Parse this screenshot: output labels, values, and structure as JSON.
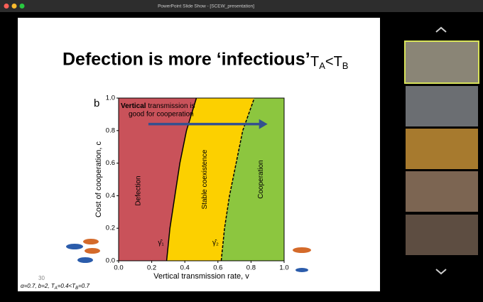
{
  "window": {
    "title": "PowerPoint Slide Show - [SCEW_presentation]"
  },
  "slide": {
    "title": "Defection is more ‘infectious’",
    "title_math": [
      "T",
      "A",
      "<T",
      "B"
    ],
    "page_number": "30",
    "footnote": [
      "α=0.7, b=2, T",
      "A",
      "=0.4<T",
      "B",
      "=0.7"
    ]
  },
  "chart_data": {
    "type": "line",
    "panel_label": "b",
    "xlabel": "Vertical transmission rate, v",
    "ylabel": "Cost of cooperation, c",
    "xlim": [
      0,
      1
    ],
    "ylim": [
      0,
      1
    ],
    "xticks": [
      {
        "value": 0,
        "label": "0.0"
      },
      0.2,
      0.4,
      0.6,
      0.8,
      {
        "value": 1,
        "label": "1.0"
      }
    ],
    "yticks": [
      {
        "value": 0,
        "label": "0.0"
      },
      0.2,
      0.4,
      0.6,
      0.8,
      {
        "value": 1,
        "label": "1.0"
      }
    ],
    "annotation": [
      "Vertical",
      " transmission is",
      "good for cooperation"
    ],
    "regions": [
      {
        "name": "Defection",
        "color": "#c9525a"
      },
      {
        "name": "Stable coexistence",
        "color": "#fcd000"
      },
      {
        "name": "Cooperation",
        "color": "#8cc63f"
      }
    ],
    "series": [
      {
        "name": "γ̂₁",
        "color": "#000000",
        "dash": false,
        "x": [
          0.29,
          0.31,
          0.34,
          0.37,
          0.41,
          0.47
        ],
        "values": [
          0,
          0.2,
          0.4,
          0.6,
          0.8,
          1
        ]
      },
      {
        "name": "γ̂₂",
        "color": "#000000",
        "dash": true,
        "x": [
          0.62,
          0.64,
          0.67,
          0.71,
          0.75,
          0.82
        ],
        "values": [
          0,
          0.2,
          0.4,
          0.6,
          0.8,
          1
        ]
      }
    ]
  }
}
